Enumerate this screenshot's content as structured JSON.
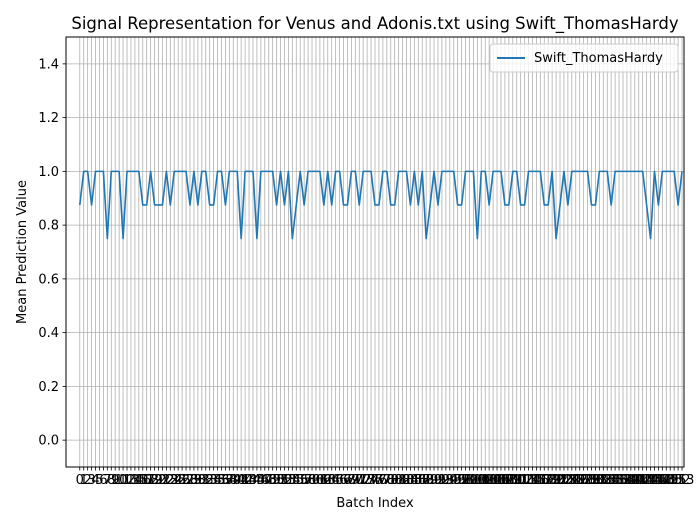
{
  "chart_data": {
    "type": "line",
    "title": "Signal Representation for Venus and Adonis.txt using Swift_ThomasHardy",
    "xlabel": "Batch Index",
    "ylabel": "Mean Prediction Value",
    "ylim": [
      -0.1,
      1.5
    ],
    "yticks": [
      0.0,
      0.2,
      0.4,
      0.6,
      0.8,
      1.0,
      1.2,
      1.4
    ],
    "xlim": [
      -3.5,
      153.5
    ],
    "grid": true,
    "legend_position": "top-right",
    "colors": {
      "series": "#1f77b4",
      "grid": "#b0b0b0"
    },
    "series": [
      {
        "name": "Swift_ThomasHardy",
        "x_start": 0,
        "values": [
          0.875,
          1,
          1,
          0.875,
          1,
          1,
          1,
          0.75,
          1,
          1,
          1,
          0.75,
          1,
          1,
          1,
          1,
          0.875,
          0.875,
          1,
          0.875,
          0.875,
          0.875,
          1,
          0.875,
          1,
          1,
          1,
          1,
          0.875,
          1,
          0.875,
          1,
          1,
          0.875,
          0.875,
          1,
          1,
          0.875,
          1,
          1,
          1,
          0.75,
          1,
          1,
          1,
          0.75,
          1,
          1,
          1,
          1,
          0.875,
          1,
          0.875,
          1,
          0.75,
          0.875,
          1,
          0.875,
          1,
          1,
          1,
          1,
          0.875,
          1,
          0.875,
          1,
          1,
          0.875,
          0.875,
          1,
          1,
          0.875,
          1,
          1,
          1,
          0.875,
          0.875,
          1,
          1,
          0.875,
          0.875,
          1,
          1,
          1,
          0.875,
          1,
          0.875,
          1,
          0.75,
          0.875,
          1,
          0.875,
          1,
          1,
          1,
          1,
          0.875,
          0.875,
          1,
          1,
          1,
          0.75,
          1,
          1,
          0.875,
          1,
          1,
          1,
          0.875,
          0.875,
          1,
          1,
          0.875,
          0.875,
          1,
          1,
          1,
          1,
          0.875,
          0.875,
          1,
          0.75,
          0.875,
          1,
          0.875,
          1,
          1,
          1,
          1,
          1,
          0.875,
          0.875,
          1,
          1,
          1,
          0.875,
          1,
          1,
          1,
          1,
          1,
          1,
          1,
          1,
          0.875,
          0.75,
          1,
          0.875,
          1,
          1,
          1,
          1,
          0.875,
          1
        ]
      }
    ]
  }
}
